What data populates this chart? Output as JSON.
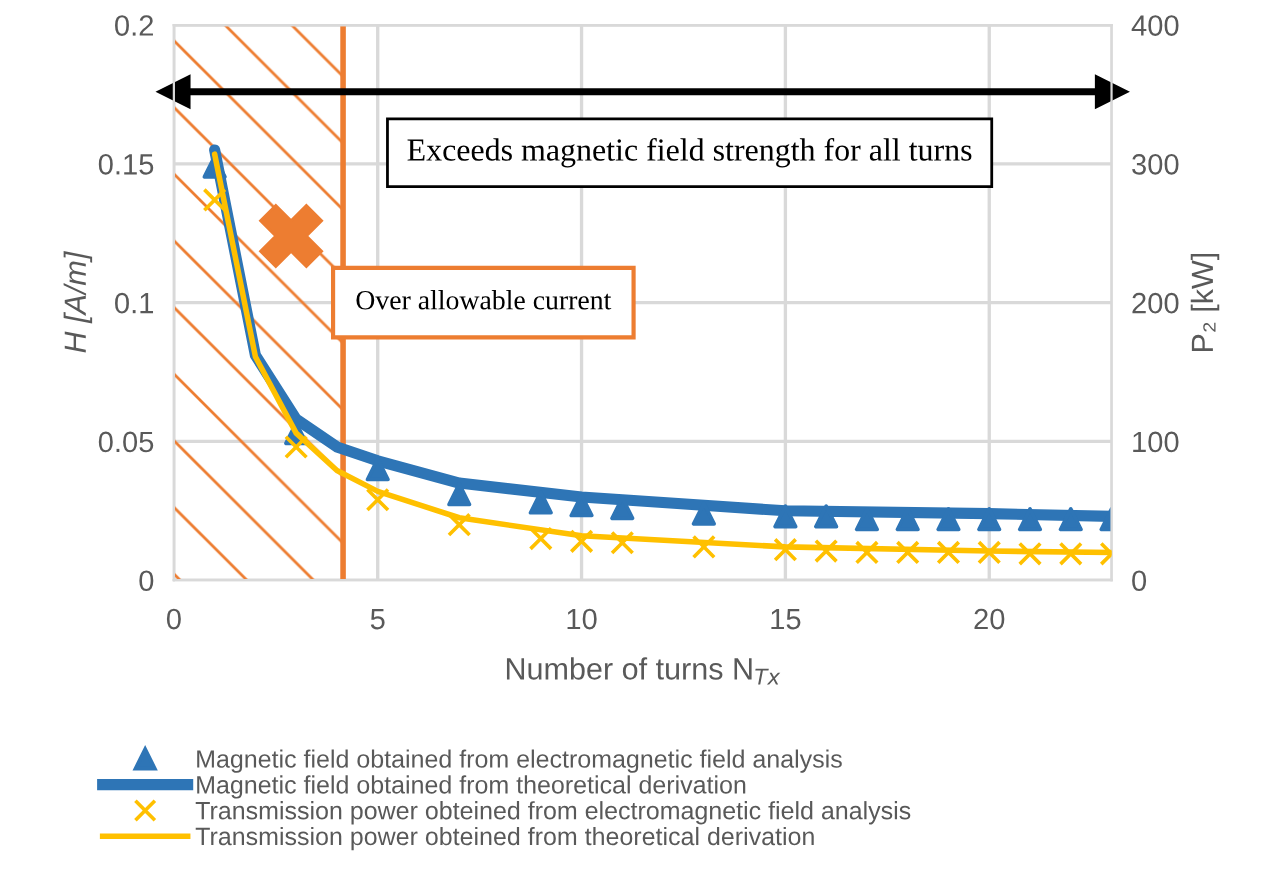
{
  "chart_data": {
    "type": "line",
    "xlabel": "Number of turns N$_{Tx}$",
    "ylabel": "H [A/m]",
    "y2label": "P₂ [kW]",
    "xlim": [
      0,
      23
    ],
    "xticks": [
      0,
      5,
      10,
      15,
      20
    ],
    "ylim": [
      0,
      0.2
    ],
    "yticks": [
      0,
      0.05,
      0.1,
      0.15,
      0.2
    ],
    "y2lim": [
      0,
      400
    ],
    "y2ticks": [
      0,
      100,
      200,
      300,
      400
    ],
    "grid": true,
    "legend": "bottom",
    "series": [
      {
        "name": "Magnetic field obtained from electromagnetic field analysis",
        "type": "scatter",
        "marker": "triangle",
        "axis": "y",
        "color": "#2e75b6",
        "x": [
          1,
          3,
          5,
          7,
          9,
          10,
          11,
          13,
          15,
          16,
          17,
          18,
          19,
          20,
          21,
          22,
          23
        ],
        "values": [
          0.149,
          0.053,
          0.04,
          0.031,
          0.028,
          0.027,
          0.026,
          0.024,
          0.023,
          0.023,
          0.022,
          0.022,
          0.022,
          0.022,
          0.022,
          0.022,
          0.022
        ]
      },
      {
        "name": "Magnetic field obtained from theoretical derivation",
        "marker": "none",
        "axis": "y",
        "color": "#2e75b6",
        "x": [
          1,
          2,
          3,
          4,
          5,
          7,
          10,
          15,
          20,
          23
        ],
        "values": [
          0.155,
          0.081,
          0.058,
          0.048,
          0.043,
          0.035,
          0.03,
          0.025,
          0.024,
          0.023
        ]
      },
      {
        "name": "Transmission power obteined from electromagnetic field analysis",
        "type": "scatter",
        "marker": "cross",
        "axis": "y2",
        "color": "#ffc000",
        "x": [
          1,
          3,
          5,
          7,
          9,
          10,
          11,
          13,
          15,
          16,
          17,
          18,
          19,
          20,
          21,
          22,
          23
        ],
        "values": [
          274,
          96,
          58,
          40,
          30,
          28,
          27,
          24,
          22,
          21,
          20,
          20,
          20,
          20,
          19,
          19,
          19
        ]
      },
      {
        "name": "Transmission power obteined from theoretical derivation",
        "marker": "none",
        "axis": "y2",
        "color": "#ffc000",
        "x": [
          1,
          2,
          3,
          4,
          5,
          7,
          10,
          15,
          20,
          23
        ],
        "values": [
          307,
          161,
          106,
          79,
          64,
          45,
          32,
          24,
          21,
          20
        ]
      }
    ],
    "bands": [
      {
        "axis": "x",
        "from": 0,
        "to": 4.15,
        "color": "#ed7d31"
      }
    ],
    "ref_lines": [
      {
        "axis": "x",
        "value": 4.15,
        "label": "Over allowable current",
        "color": "#ed7d31"
      },
      {
        "axis": "y",
        "value": 0.176,
        "label": "Exceeds magnetic field strength for all turns",
        "color": "#000000"
      }
    ]
  }
}
